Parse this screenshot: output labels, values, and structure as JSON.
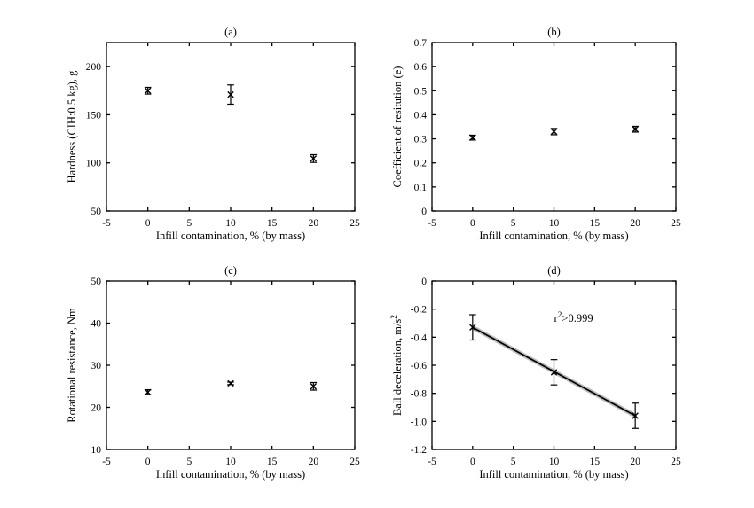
{
  "figure": {
    "background": "#ffffff",
    "axis_color": "#000000",
    "text_color": "#000000",
    "marker_color": "#000000"
  },
  "chart_data": [
    {
      "id": "a",
      "type": "scatter",
      "title": "(a)",
      "xlabel": "Infill contamination, % (by mass)",
      "ylabel": "Hardness (CIH:0.5 kg), g",
      "xlim": [
        -5,
        25
      ],
      "ylim": [
        50,
        225
      ],
      "xticks": [
        "-5",
        "0",
        "5",
        "10",
        "15",
        "20",
        "25"
      ],
      "yticks": [
        "50",
        "100",
        "150",
        "200"
      ],
      "grid": false,
      "marker": "x",
      "x": [
        0,
        10,
        20
      ],
      "y": [
        175,
        171,
        104.5
      ],
      "yerr": [
        3.5,
        10,
        4
      ]
    },
    {
      "id": "b",
      "type": "scatter",
      "title": "(b)",
      "xlabel": "Infill contamination, % (by mass)",
      "ylabel": "Coefficient of resitution (e)",
      "xlim": [
        -5,
        25
      ],
      "ylim": [
        0,
        0.7
      ],
      "xticks": [
        "-5",
        "0",
        "5",
        "10",
        "15",
        "20",
        "25"
      ],
      "yticks": [
        "0",
        "0.1",
        "0.2",
        "0.3",
        "0.4",
        "0.5",
        "0.6",
        "0.7"
      ],
      "grid": false,
      "marker": "x",
      "x": [
        0,
        10,
        20
      ],
      "y": [
        0.305,
        0.33,
        0.34
      ],
      "yerr": [
        0.01,
        0.013,
        0.012
      ]
    },
    {
      "id": "c",
      "type": "scatter",
      "title": "(c)",
      "xlabel": "Infill contamination, % (by mass)",
      "ylabel": "Rotational resistance, Nm",
      "xlim": [
        -5,
        25
      ],
      "ylim": [
        10,
        50
      ],
      "xticks": [
        "-5",
        "0",
        "5",
        "10",
        "15",
        "20",
        "25"
      ],
      "yticks": [
        "10",
        "20",
        "30",
        "40",
        "50"
      ],
      "grid": false,
      "marker": "x",
      "x": [
        0,
        10,
        20
      ],
      "y": [
        23.6,
        25.7,
        25.0
      ],
      "yerr": [
        0.6,
        0.3,
        0.9
      ]
    },
    {
      "id": "d",
      "type": "scatter",
      "title": "(d)",
      "xlabel": "Infill contamination, % (by mass)",
      "ylabel": "Ball deceleration, m/s^2",
      "xlim": [
        -5,
        25
      ],
      "ylim": [
        -1.2,
        0
      ],
      "xticks": [
        "-5",
        "0",
        "5",
        "10",
        "15",
        "20",
        "25"
      ],
      "yticks": [
        "0",
        "-0.2",
        "-0.4",
        "-0.6",
        "-0.8",
        "-1.0",
        "-1.2"
      ],
      "grid": false,
      "marker": "x",
      "x": [
        0,
        10,
        20
      ],
      "y": [
        -0.33,
        -0.65,
        -0.96
      ],
      "yerr": [
        0.09,
        0.09,
        0.09
      ],
      "fit_line": {
        "x": [
          0,
          20
        ],
        "y": [
          -0.33,
          -0.96
        ],
        "color": "#000000",
        "band_color": "#bdbdbd"
      },
      "annotation": {
        "text": "r^2>0.999",
        "x": 10.0,
        "y": -0.29
      }
    }
  ]
}
